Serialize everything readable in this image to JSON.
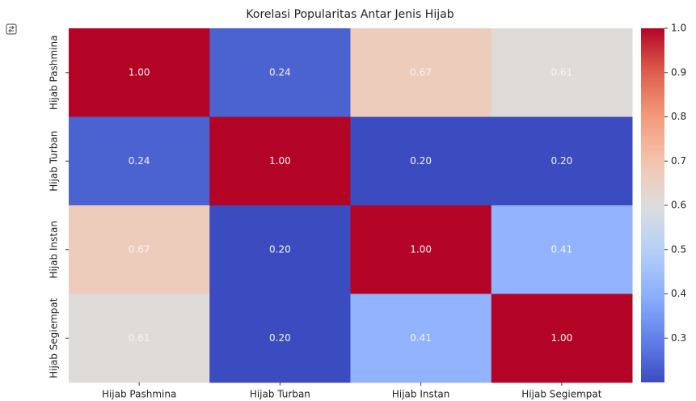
{
  "chart_data": {
    "type": "heatmap",
    "title": "Korelasi Popularitas Antar Jenis Hijab",
    "x_categories": [
      "Hijab Pashmina",
      "Hijab Turban",
      "Hijab Instan",
      "Hijab Segiempat"
    ],
    "y_categories": [
      "Hijab Pashmina",
      "Hijab Turban",
      "Hijab Instan",
      "Hijab Segiempat"
    ],
    "values": [
      [
        1,
        0.24,
        0.67,
        0.61
      ],
      [
        0.24,
        1,
        0.2,
        0.2
      ],
      [
        0.67,
        0.2,
        1,
        0.41
      ],
      [
        0.61,
        0.2,
        0.41,
        1
      ]
    ],
    "value_labels": [
      [
        "1.00",
        "0.24",
        "0.67",
        "0.61"
      ],
      [
        "0.24",
        "1.00",
        "0.20",
        "0.20"
      ],
      [
        "0.67",
        "0.20",
        "1.00",
        "0.41"
      ],
      [
        "0.61",
        "0.20",
        "0.41",
        "1.00"
      ]
    ],
    "colormap": "coolwarm",
    "clim": [
      0.2,
      1
    ],
    "cticks": [
      {
        "value": 1,
        "label": "1.0"
      },
      0.9,
      0.8,
      0.7,
      0.6,
      0.5,
      0.4,
      0.3
    ]
  }
}
